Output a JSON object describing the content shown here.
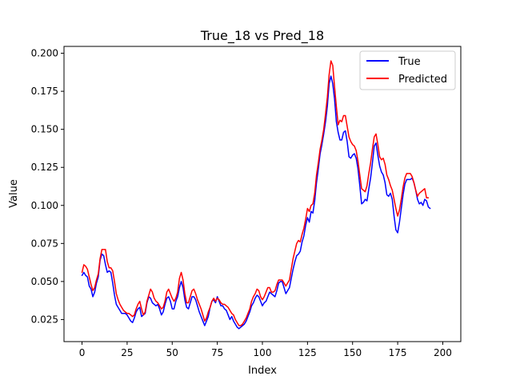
{
  "chart_data": {
    "type": "line",
    "title": "True_18 vs Pred_18",
    "xlabel": "Index",
    "ylabel": "Value",
    "xlim": [
      -10,
      210
    ],
    "ylim": [
      0.0105,
      0.2045
    ],
    "xticks": [
      0,
      25,
      50,
      75,
      100,
      125,
      150,
      175,
      200
    ],
    "yticks": [
      0.025,
      0.05,
      0.075,
      0.1,
      0.125,
      0.15,
      0.175,
      0.2
    ],
    "ytick_labels": [
      "0.025",
      "0.050",
      "0.075",
      "0.100",
      "0.125",
      "0.150",
      "0.175",
      "0.200"
    ],
    "grid": false,
    "legend_position": "top-right",
    "series": [
      {
        "name": "True",
        "color": "#0000ff",
        "values": [
          0.054,
          0.056,
          0.054,
          0.053,
          0.047,
          0.045,
          0.04,
          0.043,
          0.049,
          0.053,
          0.064,
          0.068,
          0.067,
          0.061,
          0.056,
          0.057,
          0.056,
          0.049,
          0.041,
          0.035,
          0.033,
          0.031,
          0.029,
          0.029,
          0.029,
          0.028,
          0.026,
          0.024,
          0.023,
          0.026,
          0.03,
          0.032,
          0.033,
          0.027,
          0.028,
          0.029,
          0.036,
          0.04,
          0.039,
          0.036,
          0.035,
          0.034,
          0.035,
          0.032,
          0.028,
          0.03,
          0.035,
          0.039,
          0.04,
          0.037,
          0.032,
          0.032,
          0.037,
          0.04,
          0.046,
          0.05,
          0.046,
          0.038,
          0.033,
          0.032,
          0.036,
          0.04,
          0.04,
          0.038,
          0.034,
          0.03,
          0.027,
          0.024,
          0.021,
          0.024,
          0.027,
          0.033,
          0.037,
          0.038,
          0.036,
          0.04,
          0.037,
          0.034,
          0.034,
          0.032,
          0.031,
          0.028,
          0.025,
          0.027,
          0.024,
          0.022,
          0.02,
          0.019,
          0.02,
          0.021,
          0.022,
          0.024,
          0.027,
          0.03,
          0.034,
          0.036,
          0.039,
          0.041,
          0.04,
          0.037,
          0.034,
          0.036,
          0.037,
          0.04,
          0.043,
          0.042,
          0.041,
          0.04,
          0.044,
          0.049,
          0.05,
          0.05,
          0.046,
          0.042,
          0.044,
          0.046,
          0.052,
          0.058,
          0.063,
          0.067,
          0.068,
          0.07,
          0.076,
          0.08,
          0.087,
          0.092,
          0.089,
          0.096,
          0.095,
          0.103,
          0.115,
          0.124,
          0.134,
          0.14,
          0.147,
          0.155,
          0.165,
          0.18,
          0.185,
          0.18,
          0.17,
          0.155,
          0.148,
          0.143,
          0.143,
          0.148,
          0.149,
          0.142,
          0.132,
          0.131,
          0.133,
          0.134,
          0.131,
          0.124,
          0.113,
          0.101,
          0.102,
          0.104,
          0.103,
          0.111,
          0.118,
          0.128,
          0.139,
          0.141,
          0.133,
          0.126,
          0.122,
          0.12,
          0.115,
          0.107,
          0.106,
          0.108,
          0.104,
          0.093,
          0.084,
          0.082,
          0.089,
          0.098,
          0.107,
          0.114,
          0.117,
          0.117,
          0.117,
          0.118,
          0.115,
          0.11,
          0.104,
          0.101,
          0.102,
          0.1,
          0.104,
          0.103,
          0.099,
          0.098
        ]
      },
      {
        "name": "Predicted",
        "color": "#ff0000",
        "values": [
          0.056,
          0.061,
          0.06,
          0.058,
          0.053,
          0.048,
          0.044,
          0.046,
          0.051,
          0.055,
          0.065,
          0.071,
          0.071,
          0.071,
          0.063,
          0.059,
          0.059,
          0.057,
          0.05,
          0.042,
          0.038,
          0.035,
          0.033,
          0.031,
          0.03,
          0.029,
          0.029,
          0.028,
          0.027,
          0.028,
          0.032,
          0.035,
          0.037,
          0.032,
          0.028,
          0.03,
          0.037,
          0.041,
          0.045,
          0.043,
          0.039,
          0.037,
          0.036,
          0.034,
          0.032,
          0.033,
          0.037,
          0.043,
          0.045,
          0.042,
          0.039,
          0.037,
          0.039,
          0.043,
          0.052,
          0.056,
          0.051,
          0.042,
          0.036,
          0.036,
          0.04,
          0.044,
          0.045,
          0.042,
          0.038,
          0.035,
          0.032,
          0.028,
          0.024,
          0.026,
          0.03,
          0.033,
          0.037,
          0.039,
          0.037,
          0.039,
          0.038,
          0.036,
          0.035,
          0.035,
          0.034,
          0.033,
          0.031,
          0.029,
          0.028,
          0.025,
          0.023,
          0.021,
          0.021,
          0.022,
          0.024,
          0.026,
          0.029,
          0.032,
          0.037,
          0.04,
          0.042,
          0.045,
          0.044,
          0.04,
          0.038,
          0.04,
          0.043,
          0.046,
          0.046,
          0.043,
          0.043,
          0.044,
          0.048,
          0.051,
          0.051,
          0.051,
          0.049,
          0.047,
          0.049,
          0.051,
          0.058,
          0.065,
          0.07,
          0.075,
          0.077,
          0.076,
          0.081,
          0.085,
          0.091,
          0.098,
          0.096,
          0.1,
          0.101,
          0.108,
          0.12,
          0.128,
          0.137,
          0.143,
          0.15,
          0.16,
          0.171,
          0.186,
          0.195,
          0.192,
          0.178,
          0.165,
          0.153,
          0.156,
          0.155,
          0.159,
          0.159,
          0.152,
          0.145,
          0.142,
          0.14,
          0.139,
          0.136,
          0.129,
          0.12,
          0.111,
          0.11,
          0.109,
          0.113,
          0.121,
          0.128,
          0.137,
          0.145,
          0.147,
          0.14,
          0.132,
          0.13,
          0.131,
          0.127,
          0.12,
          0.117,
          0.113,
          0.11,
          0.104,
          0.098,
          0.093,
          0.097,
          0.104,
          0.112,
          0.118,
          0.121,
          0.121,
          0.121,
          0.119,
          0.115,
          0.11,
          0.106,
          0.108,
          0.109,
          0.11,
          0.111,
          0.105,
          0.105
        ]
      }
    ]
  }
}
